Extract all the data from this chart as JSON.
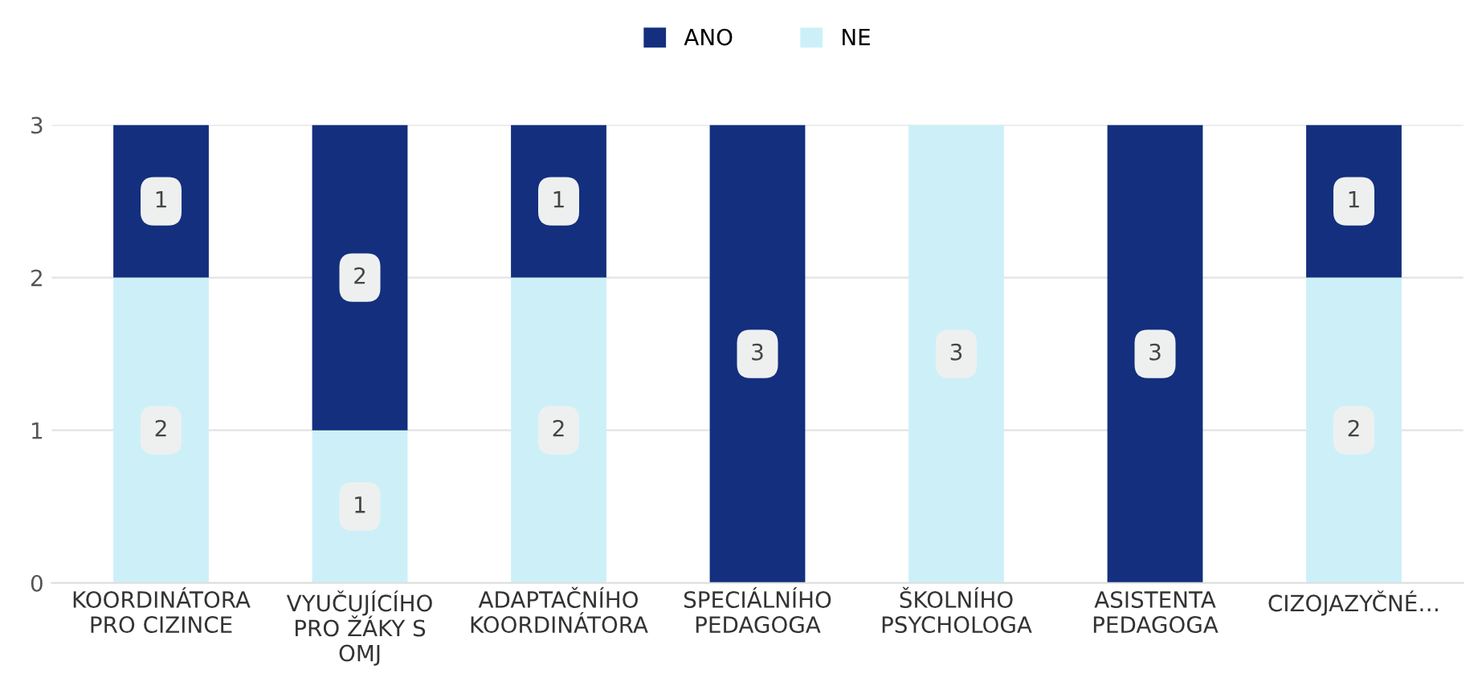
{
  "chart_data": {
    "type": "bar",
    "stacked": true,
    "categories": [
      "KOORDINÁTORA\nPRO CIZINCE",
      "VYUČUJÍCÍHO\nPRO ŽÁKY S\nOMJ",
      "ADAPTAČNÍHO\nKOORDINÁTORA",
      "SPECIÁLNÍHO\nPEDAGOGA",
      "ŠKOLNÍHO\nPSYCHOLOGA",
      "ASISTENTA\nPEDAGOGA",
      "CIZOJAZYČNÉ…"
    ],
    "series": [
      {
        "name": "NE",
        "color": "#cdf0f8",
        "values": [
          2,
          1,
          2,
          0,
          3,
          0,
          2
        ],
        "value_labels": [
          "2",
          "1",
          "2",
          null,
          "3",
          null,
          "2"
        ]
      },
      {
        "name": "ANO",
        "color": "#132f7e",
        "values": [
          1,
          2,
          1,
          3,
          0,
          3,
          1
        ],
        "value_labels": [
          "1",
          "2",
          "1",
          "3",
          null,
          "3",
          "1"
        ]
      }
    ],
    "ylim": [
      0,
      3
    ],
    "yticks": [
      0,
      1,
      2,
      3
    ],
    "grid": "y",
    "legend": "top"
  }
}
